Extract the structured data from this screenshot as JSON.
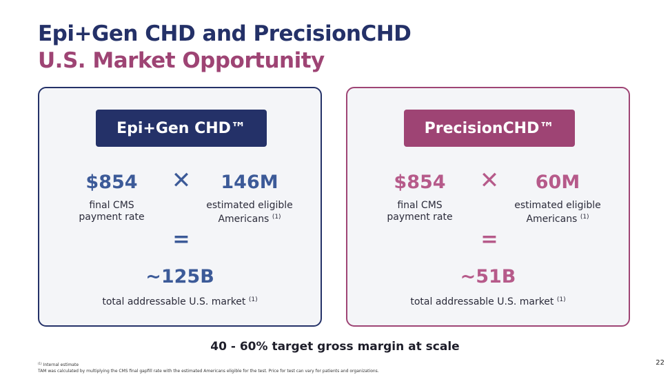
{
  "title": {
    "line1": "Epi+Gen CHD and PrecisionCHD",
    "line2": "U.S. Market Opportunity"
  },
  "colors": {
    "navy": "#243168",
    "plum": "#9e4474",
    "blue_accent": "#3c5a98",
    "pink_accent": "#b65a8a"
  },
  "panels": [
    {
      "badge": "Epi+Gen CHD™",
      "price": "$854",
      "operator": "✕",
      "population": "146M",
      "price_label_line1": "final CMS",
      "price_label_line2": "payment rate",
      "pop_label_line1": "estimated eligible",
      "pop_label_line2": "Americans",
      "footnote_ref": "(1)",
      "equals": "=",
      "total": "~125B",
      "total_label": "total addressable U.S. market"
    },
    {
      "badge": "PrecisionCHD™",
      "price": "$854",
      "operator": "✕",
      "population": "60M",
      "price_label_line1": "final CMS",
      "price_label_line2": "payment rate",
      "pop_label_line1": "estimated eligible",
      "pop_label_line2": "Americans",
      "footnote_ref": "(1)",
      "equals": "=",
      "total": "~51B",
      "total_label": "total addressable U.S. market"
    }
  ],
  "margin_note": "40 - 60% target gross margin at scale",
  "footnotes": {
    "marker": "(1)",
    "note1": "Internal estimate",
    "note2": "TAM was calculated by multiplying the CMS final gapfill rate with the estimated Americans eligible for the test. Price for test can vary for patients and organizations."
  },
  "page_number": "22"
}
